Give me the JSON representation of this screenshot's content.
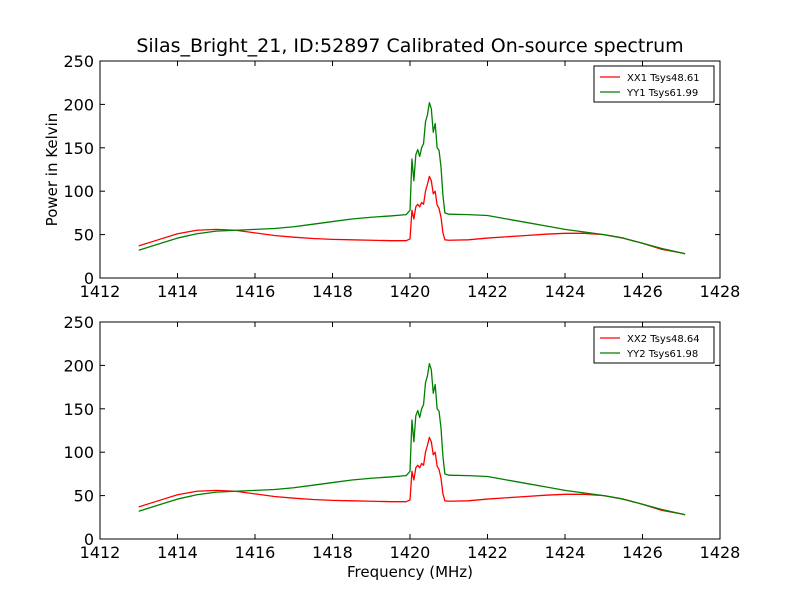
{
  "title": "Silas_Bright_21, ID:52897 Calibrated On-source spectrum",
  "chart_data": [
    {
      "type": "line",
      "ylabel": "Power in Kelvin",
      "xlabel": "",
      "xlim": [
        1412,
        1428
      ],
      "ylim": [
        0,
        250
      ],
      "xticks": [
        1412,
        1414,
        1416,
        1418,
        1420,
        1422,
        1424,
        1426,
        1428
      ],
      "yticks": [
        0,
        50,
        100,
        150,
        200,
        250
      ],
      "xtick_labels": [
        "1412",
        "1414",
        "1416",
        "1418",
        "1420",
        "1422",
        "1424",
        "1426",
        "1428"
      ],
      "ytick_labels": [
        "0",
        "50",
        "100",
        "150",
        "200",
        "250"
      ],
      "legend_position": "top-right",
      "series": [
        {
          "name": "XX1 Tsys48.61",
          "color": "#ff0000",
          "x": [
            1413.0,
            1413.5,
            1414.0,
            1414.5,
            1415.0,
            1415.5,
            1416.0,
            1416.5,
            1417.0,
            1417.5,
            1418.0,
            1418.5,
            1419.0,
            1419.5,
            1419.9,
            1420.0,
            1420.05,
            1420.1,
            1420.15,
            1420.2,
            1420.25,
            1420.3,
            1420.35,
            1420.4,
            1420.45,
            1420.5,
            1420.55,
            1420.6,
            1420.65,
            1420.7,
            1420.75,
            1420.8,
            1420.85,
            1420.9,
            1421.0,
            1421.5,
            1422.0,
            1422.5,
            1423.0,
            1423.5,
            1424.0,
            1424.5,
            1425.0,
            1425.5,
            1426.0,
            1426.5,
            1427.0,
            1427.1
          ],
          "y": [
            37,
            44,
            51,
            55,
            56,
            55,
            52,
            49,
            47,
            45.5,
            44.5,
            44,
            43.5,
            43,
            43,
            45,
            78,
            68,
            82,
            85,
            82,
            87,
            85,
            100,
            108,
            117,
            112,
            97,
            100,
            84,
            80,
            70,
            52,
            44,
            43.5,
            44,
            46,
            47.5,
            49,
            50.5,
            51.5,
            51.5,
            50,
            46,
            40,
            33,
            29,
            28
          ]
        },
        {
          "name": "YY1 Tsys61.99",
          "color": "#008000",
          "x": [
            1413.0,
            1413.5,
            1414.0,
            1414.5,
            1415.0,
            1415.5,
            1416.0,
            1416.5,
            1417.0,
            1417.5,
            1418.0,
            1418.5,
            1419.0,
            1419.5,
            1419.9,
            1420.0,
            1420.05,
            1420.1,
            1420.15,
            1420.2,
            1420.25,
            1420.3,
            1420.35,
            1420.4,
            1420.45,
            1420.5,
            1420.55,
            1420.6,
            1420.65,
            1420.7,
            1420.75,
            1420.8,
            1420.85,
            1420.9,
            1421.0,
            1421.5,
            1422.0,
            1422.5,
            1423.0,
            1423.5,
            1424.0,
            1424.5,
            1425.0,
            1425.5,
            1426.0,
            1426.5,
            1427.0,
            1427.1
          ],
          "y": [
            32,
            39,
            46,
            51,
            54,
            55,
            56,
            57,
            59,
            62,
            65,
            68,
            70,
            71.5,
            73,
            78,
            137,
            112,
            142,
            148,
            140,
            150,
            155,
            180,
            188,
            202,
            195,
            168,
            178,
            150,
            147,
            128,
            95,
            75,
            73.5,
            73,
            72,
            68,
            64,
            60,
            56,
            53,
            50,
            46,
            40,
            34,
            29,
            28
          ]
        }
      ]
    },
    {
      "type": "line",
      "ylabel": "",
      "xlabel": "Frequency (MHz)",
      "xlim": [
        1412,
        1428
      ],
      "ylim": [
        0,
        250
      ],
      "xticks": [
        1412,
        1414,
        1416,
        1418,
        1420,
        1422,
        1424,
        1426,
        1428
      ],
      "yticks": [
        0,
        50,
        100,
        150,
        200,
        250
      ],
      "xtick_labels": [
        "1412",
        "1414",
        "1416",
        "1418",
        "1420",
        "1422",
        "1424",
        "1426",
        "1428"
      ],
      "ytick_labels": [
        "0",
        "50",
        "100",
        "150",
        "200",
        "250"
      ],
      "legend_position": "top-right",
      "series": [
        {
          "name": "XX2 Tsys48.64",
          "color": "#ff0000",
          "x": [
            1413.0,
            1413.5,
            1414.0,
            1414.5,
            1415.0,
            1415.5,
            1416.0,
            1416.5,
            1417.0,
            1417.5,
            1418.0,
            1418.5,
            1419.0,
            1419.5,
            1419.9,
            1420.0,
            1420.05,
            1420.1,
            1420.15,
            1420.2,
            1420.25,
            1420.3,
            1420.35,
            1420.4,
            1420.45,
            1420.5,
            1420.55,
            1420.6,
            1420.65,
            1420.7,
            1420.75,
            1420.8,
            1420.85,
            1420.9,
            1421.0,
            1421.5,
            1422.0,
            1422.5,
            1423.0,
            1423.5,
            1424.0,
            1424.5,
            1425.0,
            1425.5,
            1426.0,
            1426.5,
            1427.0,
            1427.1
          ],
          "y": [
            37,
            44,
            51,
            55,
            56,
            55,
            52,
            49,
            47,
            45.5,
            44.5,
            44,
            43.5,
            43,
            43,
            45,
            78,
            68,
            82,
            85,
            82,
            87,
            85,
            100,
            108,
            117,
            112,
            97,
            100,
            84,
            80,
            70,
            52,
            44,
            43.5,
            44,
            46,
            47.5,
            49,
            50.5,
            51.5,
            51.5,
            50,
            46,
            40,
            33,
            29,
            28
          ]
        },
        {
          "name": "YY2 Tsys61.98",
          "color": "#008000",
          "x": [
            1413.0,
            1413.5,
            1414.0,
            1414.5,
            1415.0,
            1415.5,
            1416.0,
            1416.5,
            1417.0,
            1417.5,
            1418.0,
            1418.5,
            1419.0,
            1419.5,
            1419.9,
            1420.0,
            1420.05,
            1420.1,
            1420.15,
            1420.2,
            1420.25,
            1420.3,
            1420.35,
            1420.4,
            1420.45,
            1420.5,
            1420.55,
            1420.6,
            1420.65,
            1420.7,
            1420.75,
            1420.8,
            1420.85,
            1420.9,
            1421.0,
            1421.5,
            1422.0,
            1422.5,
            1423.0,
            1423.5,
            1424.0,
            1424.5,
            1425.0,
            1425.5,
            1426.0,
            1426.5,
            1427.0,
            1427.1
          ],
          "y": [
            32,
            39,
            46,
            51,
            54,
            55,
            56,
            57,
            59,
            62,
            65,
            68,
            70,
            71.5,
            73,
            78,
            137,
            112,
            142,
            148,
            140,
            150,
            155,
            180,
            188,
            202,
            195,
            168,
            178,
            150,
            147,
            128,
            95,
            75,
            73.5,
            73,
            72,
            68,
            64,
            60,
            56,
            53,
            50,
            46,
            40,
            34,
            29,
            28
          ]
        }
      ]
    }
  ]
}
